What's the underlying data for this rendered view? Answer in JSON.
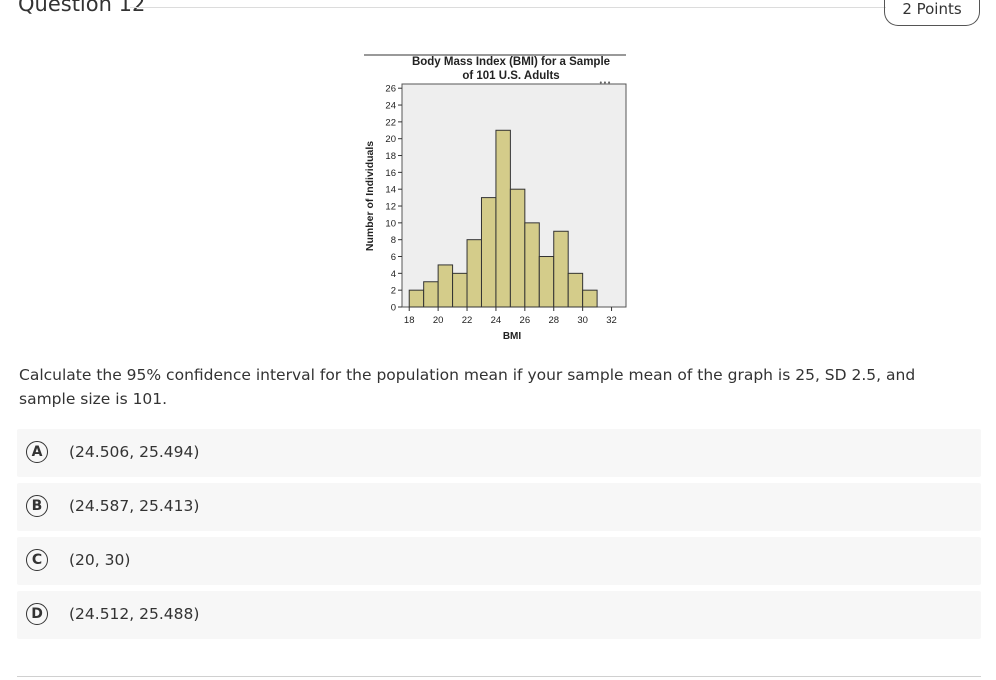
{
  "header": {
    "question_title": "Question 12",
    "points": "2 Points"
  },
  "chart_data": {
    "type": "bar",
    "title_line1": "Body Mass Index (BMI) for a Sample",
    "title_line2": "of 101 U.S. Adults",
    "xlabel": "BMI",
    "ylabel": "Number of Individuals",
    "x_ticks": [
      18,
      20,
      22,
      24,
      26,
      28,
      30,
      32
    ],
    "y_ticks": [
      0,
      2,
      4,
      6,
      8,
      10,
      12,
      14,
      16,
      18,
      20,
      22,
      24,
      26
    ],
    "xlim": [
      17.5,
      33
    ],
    "ylim": [
      0,
      26.5
    ],
    "bin_width": 1,
    "bins": [
      18,
      19,
      20,
      21,
      22,
      23,
      24,
      25,
      26,
      27,
      28,
      29,
      30
    ],
    "values": [
      2,
      3,
      5,
      4,
      8,
      13,
      21,
      14,
      10,
      6,
      9,
      4,
      2
    ],
    "bar_color": "#d4cc8a",
    "bar_stroke": "#333333",
    "menu_glyph": "•••"
  },
  "question": {
    "text": "Calculate the 95% confidence interval for the population mean if your sample mean of the graph is 25, SD 2.5, and sample size is 101."
  },
  "choices": [
    {
      "letter": "A",
      "text": "(24.506, 25.494)"
    },
    {
      "letter": "B",
      "text": "(24.587, 25.413)"
    },
    {
      "letter": "C",
      "text": "(20, 30)"
    },
    {
      "letter": "D",
      "text": "(24.512, 25.488)"
    }
  ]
}
